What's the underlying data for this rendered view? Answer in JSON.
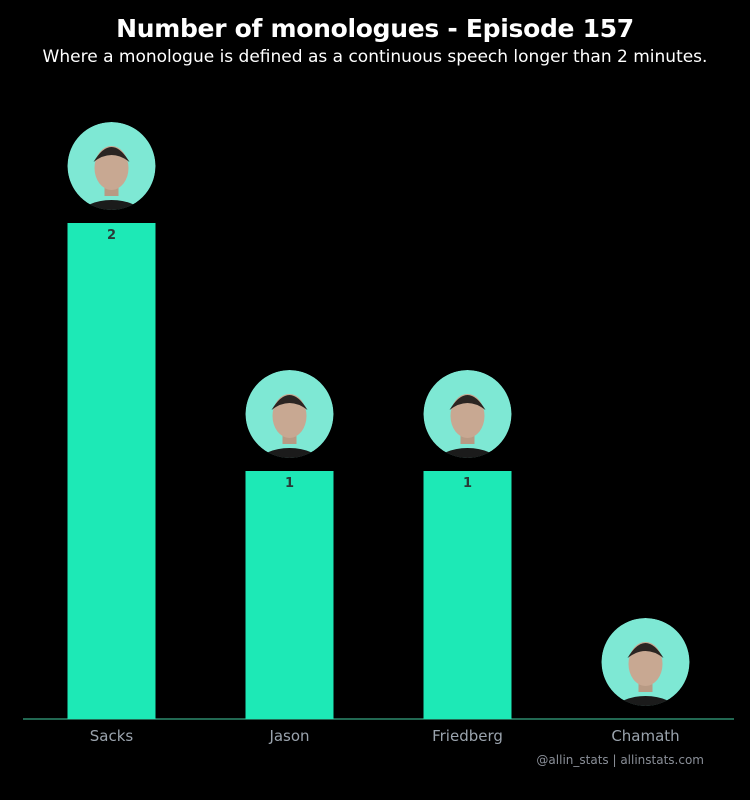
{
  "title": "Number of monologues - Episode 157",
  "subtitle": "Where a monologue is defined as a continuous speech longer than 2 minutes.",
  "credit": "@allin_stats | allinstats.com",
  "colors": {
    "background": "#000000",
    "bar": "#1de9b6",
    "avatar_ring": "#7ee8d4",
    "baseline": "#2e8b6e",
    "value_label": "#2a3b38",
    "tick_label": "#9aa3ad"
  },
  "chart_data": {
    "type": "bar",
    "categories": [
      "Sacks",
      "Jason",
      "Friedberg",
      "Chamath"
    ],
    "values": [
      2,
      1,
      1,
      0
    ],
    "title": "Number of monologues - Episode 157",
    "subtitle": "Where a monologue is defined as a continuous speech longer than 2 minutes.",
    "xlabel": "",
    "ylabel": "",
    "ylim": [
      0,
      2
    ],
    "grid": false,
    "legend": "none",
    "data_labels": true,
    "avatars": [
      "portrait-sacks",
      "portrait-jason",
      "portrait-friedberg",
      "portrait-chamath"
    ]
  }
}
